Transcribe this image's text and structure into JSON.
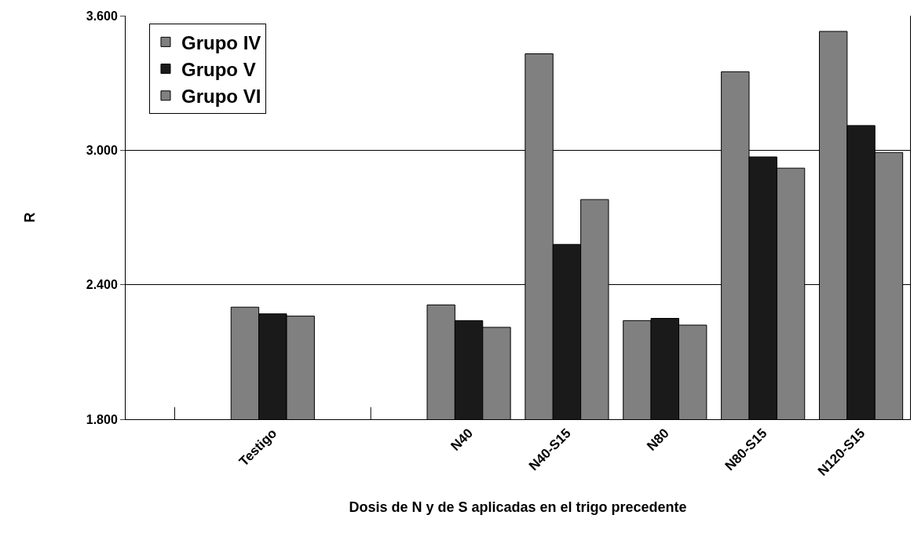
{
  "chart_data": {
    "type": "bar",
    "xlabel": "Dosis de N y de S aplicadas en el trigo precedente",
    "ylabel": "R",
    "categories": [
      null,
      "Testigo",
      null,
      "N40",
      "N40-S15",
      "N80",
      "N80-S15",
      "N120-S15"
    ],
    "series": [
      {
        "name": "Grupo IV",
        "color": "#808080",
        "values": [
          null,
          2.3,
          null,
          2.31,
          3.43,
          2.24,
          3.35,
          3.53
        ]
      },
      {
        "name": "Grupo V",
        "color": "#1a1a1a",
        "values": [
          null,
          2.27,
          null,
          2.24,
          2.58,
          2.25,
          2.97,
          3.11
        ]
      },
      {
        "name": "Grupo VI",
        "color": "#808080",
        "values": [
          null,
          2.26,
          null,
          2.21,
          2.78,
          2.22,
          2.92,
          2.99
        ]
      }
    ],
    "ylim": [
      1.8,
      3.6
    ],
    "yticks": [
      {
        "value": 1.8,
        "label": "1.800"
      },
      {
        "value": 2.4,
        "label": "2.400"
      },
      {
        "value": 3.0,
        "label": "3.000"
      },
      {
        "value": 3.6,
        "label": "3.600"
      }
    ],
    "grid": "y",
    "legend": "top left"
  }
}
